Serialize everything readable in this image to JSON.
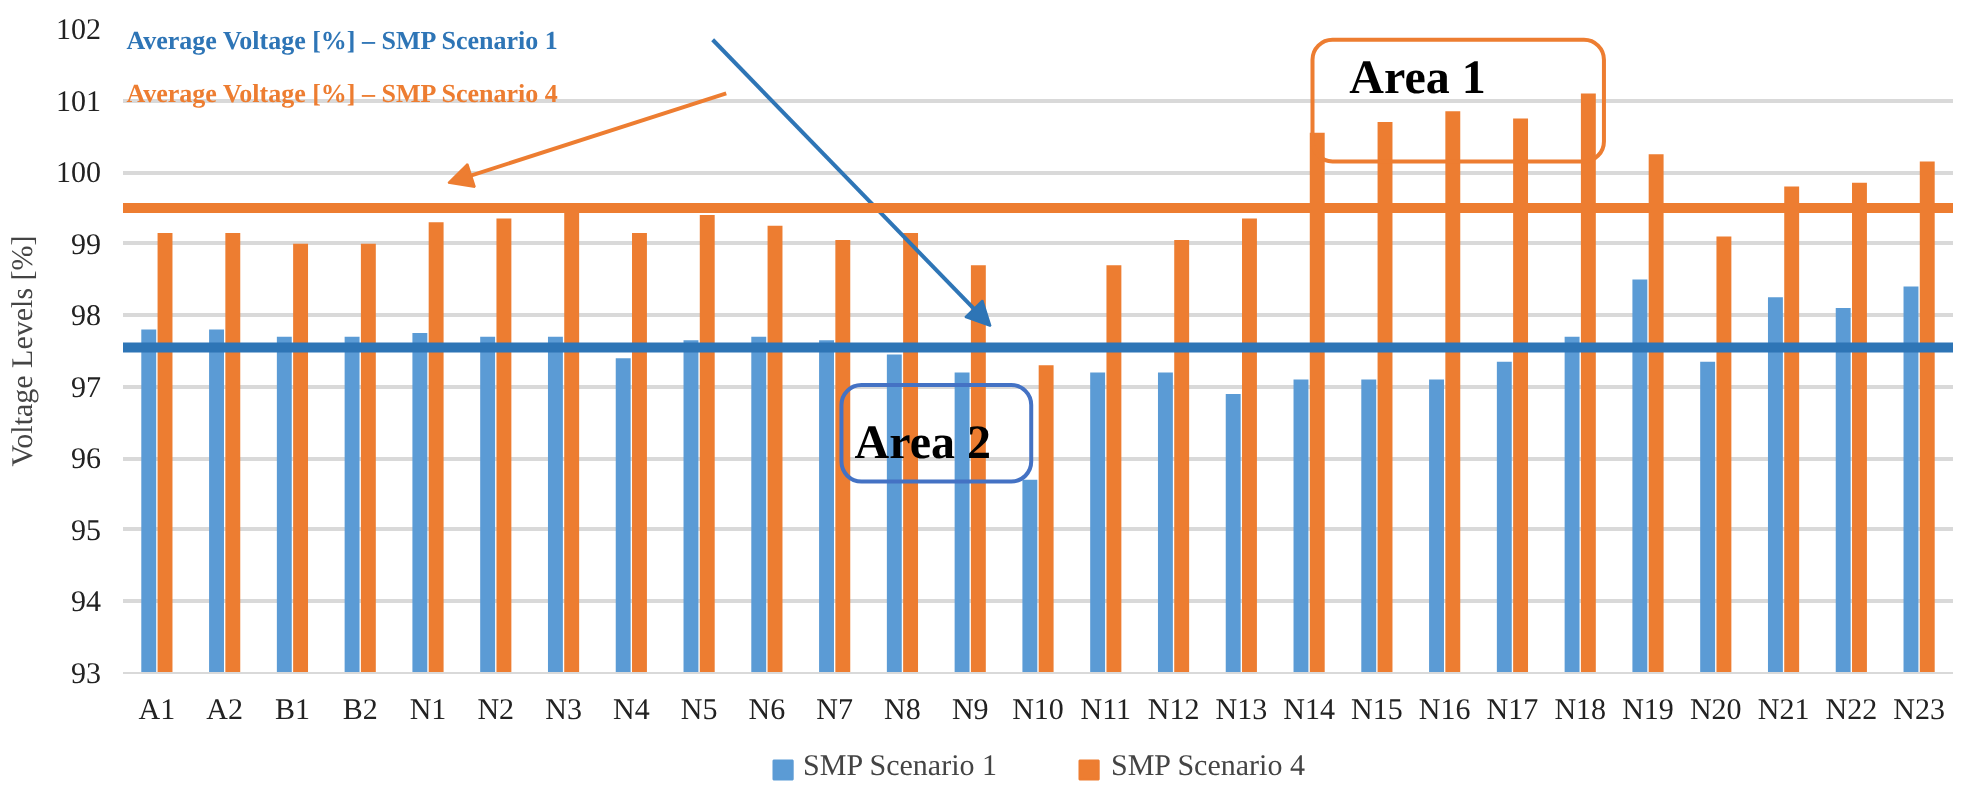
{
  "chart_data": {
    "type": "bar",
    "ylabel": "Voltage Levels [%]",
    "categories": [
      "A1",
      "A2",
      "B1",
      "B2",
      "N1",
      "N2",
      "N3",
      "N4",
      "N5",
      "N6",
      "N7",
      "N8",
      "N9",
      "N10",
      "N11",
      "N12",
      "N13",
      "N14",
      "N15",
      "N16",
      "N17",
      "N18",
      "N19",
      "N20",
      "N21",
      "N22",
      "N23"
    ],
    "series": [
      {
        "name": "SMP Scenario 1",
        "color": "#5b9bd5",
        "values": [
          97.8,
          97.8,
          97.7,
          97.7,
          97.75,
          97.7,
          97.7,
          97.4,
          97.65,
          97.7,
          97.65,
          97.45,
          97.2,
          95.7,
          97.2,
          97.2,
          96.9,
          97.1,
          97.1,
          97.1,
          97.35,
          97.7,
          98.5,
          97.35,
          98.25,
          98.1,
          98.4
        ]
      },
      {
        "name": "SMP Scenario 4",
        "color": "#ed7d31",
        "values": [
          99.15,
          99.15,
          99.0,
          99.0,
          99.3,
          99.35,
          99.5,
          99.15,
          99.4,
          99.25,
          99.05,
          99.15,
          98.7,
          97.3,
          98.7,
          99.05,
          99.35,
          100.55,
          100.7,
          100.85,
          100.75,
          101.1,
          100.25,
          99.1,
          99.8,
          99.85,
          100.15
        ]
      }
    ],
    "ylim": [
      93,
      102
    ],
    "yticks": [
      93,
      94,
      95,
      96,
      97,
      98,
      99,
      100,
      101,
      102
    ],
    "grid": "y",
    "legend": "bottom",
    "ref_lines": [
      {
        "axis": "y",
        "value": 97.55,
        "label": "Average Voltage [%] – SMP Scenario 1",
        "color": "#2e75b6"
      },
      {
        "axis": "y",
        "value": 99.5,
        "label": "Average Voltage [%] – SMP Scenario 4",
        "color": "#ed7d31"
      }
    ],
    "annotations": [
      "Area 1",
      "Area 2"
    ]
  }
}
